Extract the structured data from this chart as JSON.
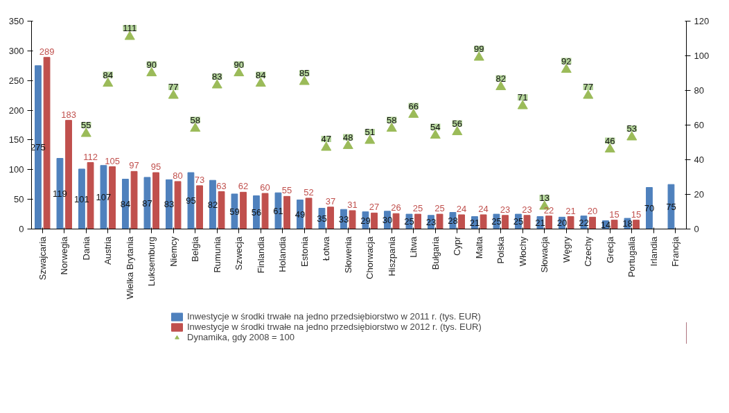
{
  "chart_data": {
    "type": "bar",
    "categories": [
      "Szwajcaria",
      "Norwegia",
      "Dania",
      "Austria",
      "Wielka Brytania",
      "Luksemburg",
      "Niemcy",
      "Belgia",
      "Rumunia",
      "Szwecja",
      "Finlandia",
      "Holandia",
      "Estonia",
      "Łotwa",
      "Słowenia",
      "Chorwacja",
      "Hiszpania",
      "Litwa",
      "Bułgaria",
      "Cypr",
      "Malta",
      "Polska",
      "Włochy",
      "Słowacja",
      "Węgry",
      "Czechy",
      "Grecja",
      "Portugalia",
      "Irlandia",
      "Francja"
    ],
    "series": [
      {
        "name": "Inwestycje w środki trwałe na jedno przedsiębiorstwo w 2011 r. (tys. EUR)",
        "color": "#4f81bd",
        "values": [
          275,
          119,
          101,
          107,
          84,
          87,
          83,
          95,
          82,
          59,
          56,
          61,
          49,
          35,
          33,
          29,
          30,
          25,
          23,
          28,
          21,
          25,
          25,
          21,
          20,
          22,
          14,
          18,
          70,
          75
        ]
      },
      {
        "name": "Inwestycje w środki trwałe na jedno przedsiębiorstwo w 2012 r. (tys. EUR)",
        "color": "#c0504d",
        "values": [
          289,
          183,
          112,
          105,
          97,
          95,
          80,
          73,
          63,
          62,
          60,
          55,
          52,
          37,
          31,
          27,
          26,
          25,
          25,
          24,
          24,
          23,
          23,
          22,
          21,
          20,
          15,
          15,
          null,
          null
        ]
      },
      {
        "name": "Dynamika, gdy 2008 = 100",
        "type": "scatter",
        "axis": "y2",
        "marker": "triangle",
        "color": "#9bbb59",
        "values": [
          null,
          null,
          55,
          84,
          111,
          90,
          77,
          58,
          83,
          90,
          84,
          null,
          85,
          47,
          48,
          51,
          58,
          66,
          54,
          56,
          99,
          82,
          71,
          13,
          92,
          77,
          46,
          53,
          null,
          null
        ]
      }
    ],
    "ylim": [
      0,
      350
    ],
    "yticks": [
      0,
      50,
      100,
      150,
      200,
      250,
      300,
      350
    ],
    "y2lim": [
      0,
      120
    ],
    "y2ticks": [
      0,
      20,
      40,
      60,
      80,
      100,
      120
    ],
    "data_labels": true,
    "grid": false,
    "legend": "bottom"
  }
}
